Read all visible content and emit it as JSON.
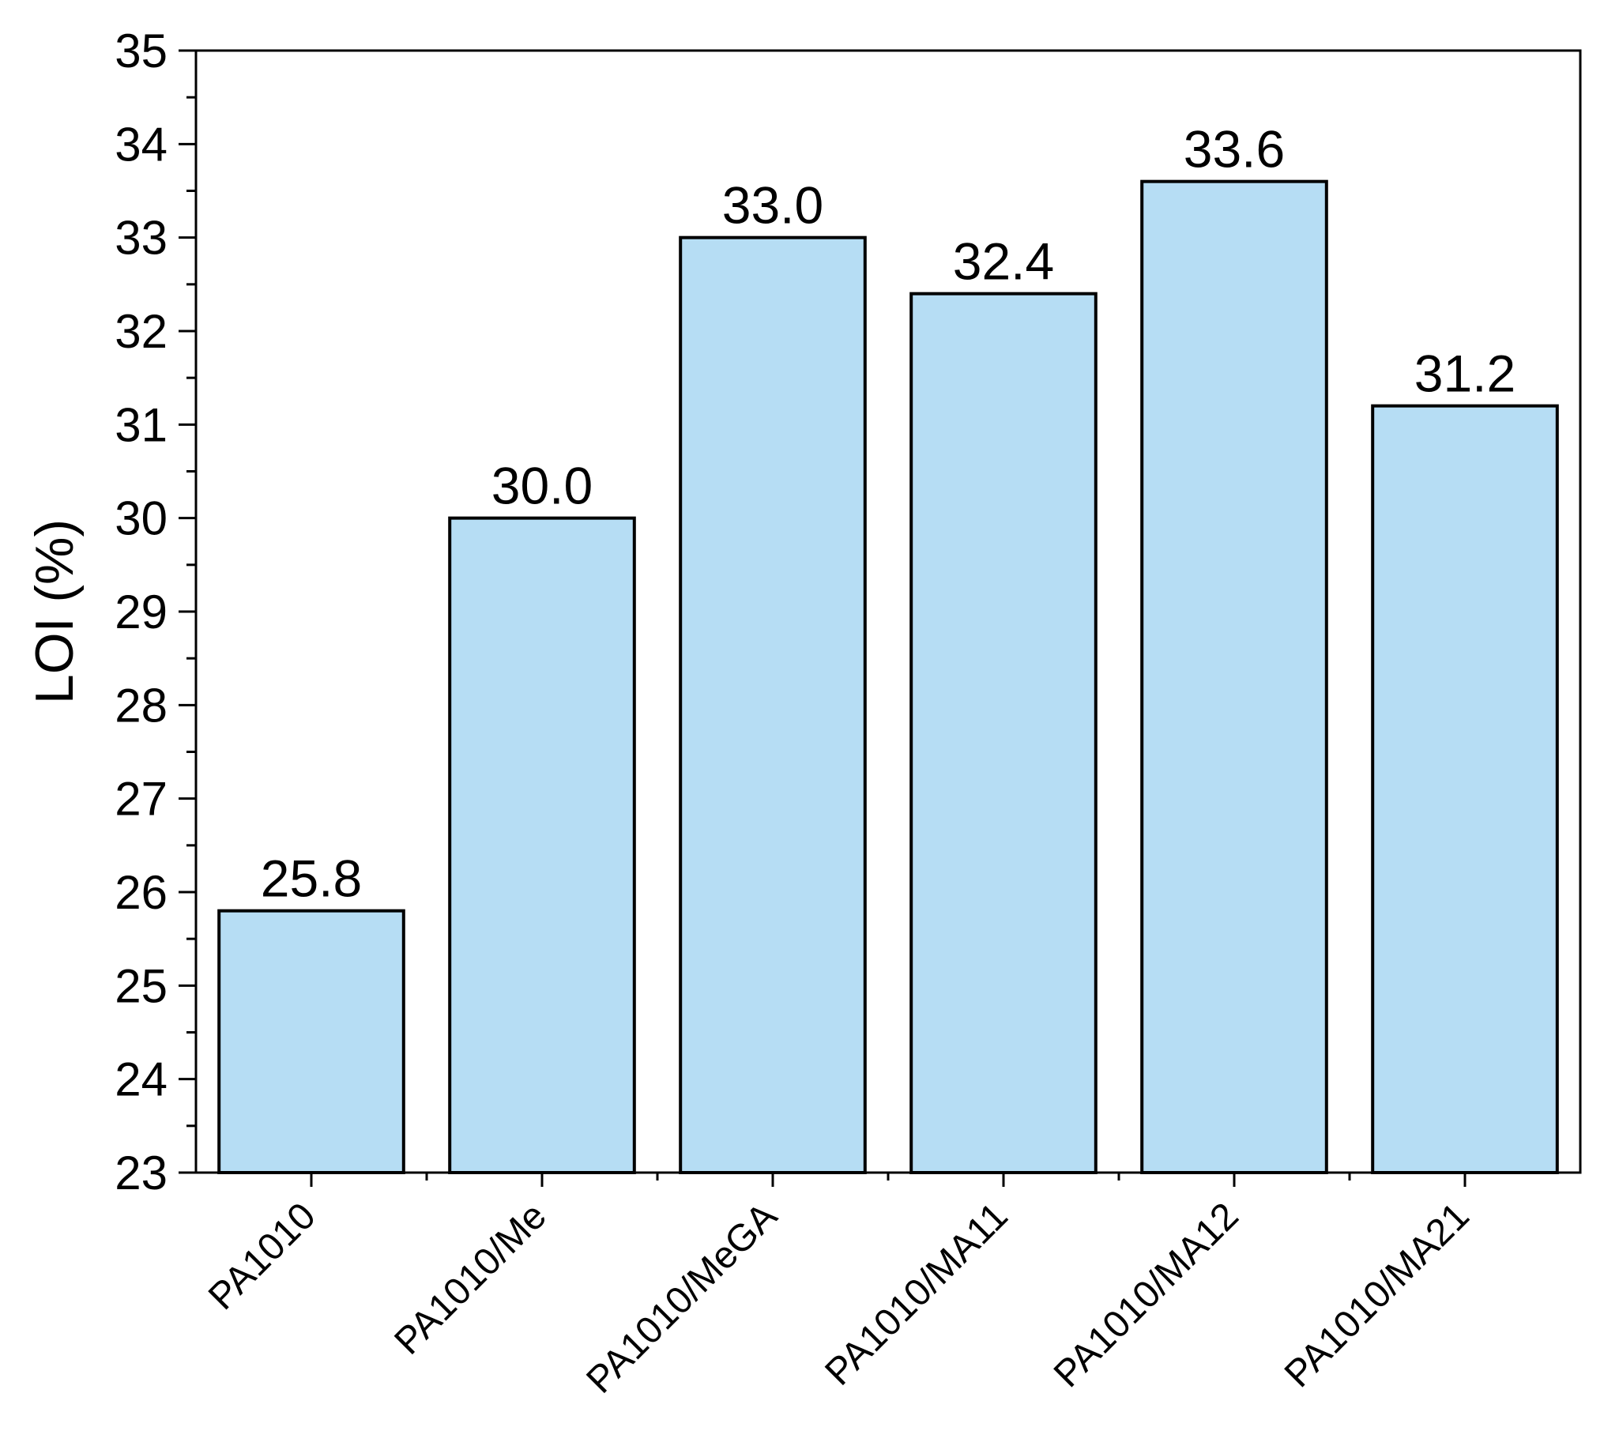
{
  "chart_data": {
    "type": "bar",
    "title": "",
    "xlabel": "",
    "ylabel": "LOI (%)",
    "categories": [
      "PA1010",
      "PA1010/Me",
      "PA1010/MeGA",
      "PA1010/MA11",
      "PA1010/MA12",
      "PA1010/MA21"
    ],
    "values": [
      25.8,
      30.0,
      33.0,
      32.4,
      33.6,
      31.2
    ],
    "value_labels": [
      "25.8",
      "30.0",
      "33.0",
      "32.4",
      "33.6",
      "31.2"
    ],
    "ylim": [
      23,
      35
    ],
    "yticks": [
      23,
      24,
      25,
      26,
      27,
      28,
      29,
      30,
      31,
      32,
      33,
      34,
      35
    ],
    "ytick_labels": [
      "23",
      "24",
      "25",
      "26",
      "27",
      "28",
      "29",
      "30",
      "31",
      "32",
      "33",
      "34",
      "35"
    ],
    "grid": false,
    "legend": "none",
    "bar_color": "#b6ddf4",
    "bar_edge_color": "#000000"
  }
}
